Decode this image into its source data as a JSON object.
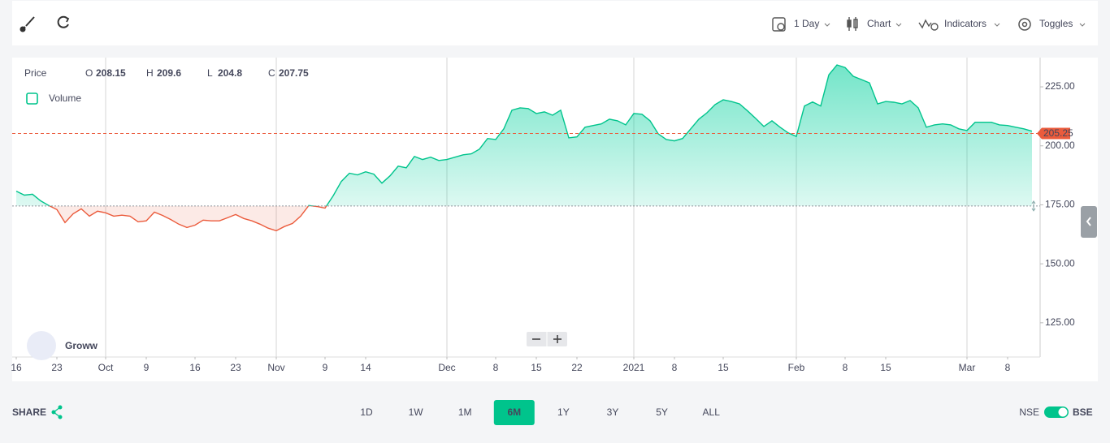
{
  "toolbar": {
    "interval": "1 Day",
    "chart": "Chart",
    "indicators": "Indicators",
    "toggles": "Toggles"
  },
  "chart_data": {
    "type": "area",
    "ohlc": [
      {
        "label": "O",
        "value": 208.15
      },
      {
        "label": "H",
        "value": 209.6
      },
      {
        "label": "L",
        "value": 204.8
      },
      {
        "label": "C",
        "value": 207.75
      }
    ],
    "volume_label": "Volume",
    "categories": [
      "16",
      null,
      null,
      null,
      null,
      "23",
      null,
      null,
      null,
      null,
      null,
      "Oct",
      null,
      null,
      null,
      null,
      "9",
      null,
      null,
      null,
      null,
      null,
      "16",
      null,
      null,
      null,
      null,
      "23",
      null,
      null,
      null,
      null,
      "Nov",
      null,
      null,
      null,
      null,
      null,
      "9",
      null,
      null,
      null,
      null,
      "14",
      null,
      null,
      null,
      null,
      null,
      null,
      null,
      null,
      null,
      "Dec",
      null,
      null,
      null,
      null,
      null,
      "8",
      null,
      null,
      null,
      null,
      "15",
      null,
      null,
      null,
      null,
      "22",
      null,
      null,
      null,
      null,
      null,
      null,
      "2021",
      null,
      null,
      null,
      null,
      "8",
      null,
      null,
      null,
      null,
      null,
      "15",
      null,
      null,
      null,
      null,
      null,
      null,
      null,
      null,
      "Feb",
      null,
      null,
      null,
      null,
      null,
      "8",
      null,
      null,
      null,
      null,
      "15",
      null,
      null,
      null,
      null,
      null,
      null,
      null,
      null,
      null,
      "Mar",
      null,
      null,
      null,
      null,
      "8",
      null,
      null,
      null
    ],
    "series": [
      {
        "name": "Price",
        "color": "#00c48c",
        "negative_color": "#eb5b3c",
        "values": [
          180.8,
          179.1,
          179.5,
          176.7,
          174.7,
          173,
          167.5,
          171.2,
          173.3,
          170.2,
          172.3,
          171.6,
          170.2,
          170.6,
          170.2,
          167.8,
          168.2,
          171.9,
          170.5,
          168.8,
          166.8,
          165.4,
          166.4,
          168.5,
          168.2,
          168.2,
          169.5,
          170.9,
          169.2,
          168.2,
          166.8,
          165.1,
          164,
          165.8,
          167.1,
          170.2,
          174.7,
          174.3,
          173.6,
          178.8,
          184.9,
          188.4,
          187.7,
          189,
          188,
          184.2,
          187.3,
          191.4,
          190.7,
          195.5,
          194.2,
          195.2,
          193.8,
          194.2,
          195.2,
          196.2,
          196.6,
          198.6,
          203.1,
          202.7,
          207.2,
          215.1,
          216.1,
          215.8,
          213.7,
          214.4,
          213,
          215.1,
          203.4,
          203.8,
          207.9,
          208.6,
          209.3,
          211.3,
          210.6,
          208.9,
          213.7,
          213.4,
          210.6,
          205.1,
          202.7,
          202.1,
          203.1,
          207.2,
          211.3,
          214,
          217.5,
          219.5,
          218.8,
          217.8,
          214.8,
          211.6,
          208.2,
          210.6,
          207.9,
          205.5,
          204,
          216.9,
          218.6,
          216.9,
          230.1,
          234.3,
          233.2,
          229.5,
          228.1,
          226.7,
          217.8,
          218.8,
          218.5,
          217.8,
          219.2,
          216.1,
          207.9,
          208.9,
          209.3,
          208.9,
          207.2,
          206.5,
          210,
          210,
          210,
          208.9,
          208.6,
          207.9,
          207.2,
          206.2
        ]
      }
    ],
    "reference_line": 174.5,
    "last_price": 205.25,
    "ylim": [
      110.5,
      237.4
    ],
    "yticks": [
      {
        "value": 125,
        "label": "125.00"
      },
      {
        "value": 150,
        "label": "150.00"
      },
      {
        "value": 175,
        "label": "175.00"
      },
      {
        "value": 200,
        "label": "200.00"
      },
      {
        "value": 225,
        "label": "225.00"
      }
    ],
    "x_grid": true,
    "watermark": "Groww"
  },
  "footer": {
    "share": "SHARE",
    "ranges": [
      {
        "label": "1D"
      },
      {
        "label": "1W"
      },
      {
        "label": "1M"
      },
      {
        "label": "6M",
        "active": true
      },
      {
        "label": "1Y"
      },
      {
        "label": "3Y"
      },
      {
        "label": "5Y"
      },
      {
        "label": "ALL"
      }
    ],
    "exchange": {
      "left": "NSE",
      "right": "BSE"
    }
  }
}
